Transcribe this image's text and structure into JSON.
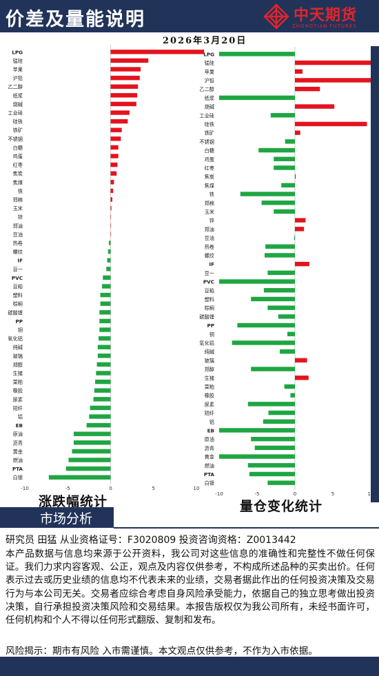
{
  "header": {
    "title": "价差及量能说明",
    "date": "2026年3月20日"
  },
  "logo": {
    "name": "中天期货",
    "sub": "ZHONGTIAN FUTURES",
    "color": "#e2242b"
  },
  "colors": {
    "positive": "#e3141f",
    "negative": "#1fa642",
    "brand": "#22335a"
  },
  "chart_data": [
    {
      "type": "bar",
      "orientation": "horizontal",
      "title": "涨跌幅统计",
      "xlim": [
        -10,
        10
      ],
      "xticks": [
        -10,
        -5,
        0,
        5,
        10
      ],
      "categories": [
        "LPG",
        "锰硅",
        "苹果",
        "沪铅",
        "乙二醇",
        "纸浆",
        "烧碱",
        "工业硅",
        "硅铁",
        "铁矿",
        "不锈钢",
        "白糖",
        "鸡蛋",
        "红枣",
        "焦炭",
        "焦煤",
        "铁",
        "郑棉",
        "玉米",
        "锌",
        "郑油",
        "豆油",
        "热卷",
        "螺纹",
        "IF",
        "豆一",
        "PVC",
        "豆粕",
        "塑料",
        "棕榈",
        "碳酸锂",
        "PP",
        "铜",
        "氧化铝",
        "纯碱",
        "玻璃",
        "郑醇",
        "生猪",
        "菜粕",
        "橡胶",
        "尿素",
        "短纤",
        "铝",
        "EB",
        "原油",
        "沥青",
        "黄金",
        "燃油",
        "PTA",
        "白银"
      ],
      "values": [
        10.9,
        4.4,
        3.5,
        3.4,
        3.2,
        3.1,
        3.0,
        2.2,
        2.0,
        1.3,
        1.2,
        0.9,
        0.9,
        0.8,
        0.7,
        0.4,
        0.3,
        0.2,
        0.1,
        0.0,
        0.0,
        0.0,
        -0.2,
        -0.3,
        -0.4,
        -0.5,
        -0.9,
        -1.0,
        -1.2,
        -1.2,
        -1.3,
        -1.3,
        -1.3,
        -1.4,
        -1.5,
        -1.5,
        -1.6,
        -1.7,
        -1.8,
        -1.9,
        -2.0,
        -2.4,
        -2.5,
        -2.8,
        -4.3,
        -4.3,
        -4.5,
        -4.9,
        -5.2,
        -7.2
      ]
    },
    {
      "type": "bar",
      "orientation": "horizontal",
      "title": "量仓变化统计",
      "xlim": [
        -10,
        10
      ],
      "xticks": [
        -10,
        -5,
        0,
        5,
        10
      ],
      "categories": [
        "LPG",
        "锰硅",
        "苹果",
        "沪铅",
        "乙二醇",
        "纸浆",
        "烧碱",
        "工业硅",
        "硅铁",
        "铁矿",
        "不锈钢",
        "白糖",
        "鸡蛋",
        "红枣",
        "焦炭",
        "焦煤",
        "铁",
        "郑棉",
        "玉米",
        "锌",
        "郑油",
        "豆油",
        "热卷",
        "螺纹",
        "IF",
        "豆一",
        "PVC",
        "豆粕",
        "塑料",
        "棕榈",
        "碳酸锂",
        "PP",
        "铜",
        "氧化铝",
        "纯碱",
        "玻璃",
        "郑醇",
        "生猪",
        "菜粕",
        "橡胶",
        "尿素",
        "短纤",
        "铝",
        "EB",
        "原油",
        "沥青",
        "黄金",
        "燃油",
        "PTA",
        "白银"
      ],
      "values": [
        -10.0,
        10.0,
        1.0,
        10.0,
        3.3,
        -10.0,
        5.2,
        -3.2,
        9.5,
        0.7,
        -1.3,
        -4.8,
        -2.8,
        -2.8,
        0.1,
        -1.8,
        -7.2,
        -4.4,
        -2.8,
        1.4,
        1.2,
        -0.1,
        -3.9,
        -4.0,
        1.9,
        -3.6,
        -10.0,
        -4.1,
        -5.8,
        -3.6,
        -2.2,
        -7.6,
        -1.0,
        -8.3,
        -2.0,
        1.6,
        -5.8,
        1.8,
        -1.4,
        -0.6,
        -6.2,
        -3.5,
        -4.2,
        -10.0,
        -5.8,
        -5.3,
        -10.0,
        -6.2,
        -6.0,
        -3.6
      ]
    }
  ],
  "section": {
    "label": "市场分析"
  },
  "footer": {
    "analyst": "研究员 田猛  从业资格证号：F3020809 投资咨询资格：Z0013442",
    "disclaimer": "本产品数据与信息均来源于公开资料，我公司对这些信息的准确性和完整性不做任何保证。我们力求内容客观、公正，观点及内容仅供参考，不构成所述品种的买卖出价。任何表示过去或历史业绩的信息均不代表未来的业绩，交易者据此作出的任何投资决策及交易行为与本公司无关。交易者应综合考虑自身风险承受能力，依据自己的独立思考做出投资决策，自行承担投资决策风险和交易结果。本报告版权仅为我公司所有，未经书面许可，任何机构和个人不得以任何形式翻版、复制和发布。",
    "risk": "风险揭示：期市有风险 入市需谨慎。本文观点仅供参考，不作为入市依据。"
  }
}
